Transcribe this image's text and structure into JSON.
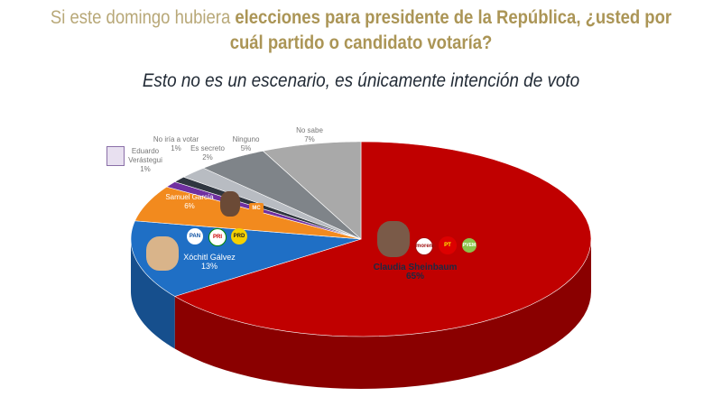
{
  "header": {
    "title_plain": "Si este domingo hubiera ",
    "title_bold": "elecciones para presidente de la República, ¿usted por cuál partido o candidato votaría?",
    "subtitle": "Esto no es un escenario, es únicamente intención de voto"
  },
  "chart_data": {
    "type": "pie",
    "title": "Si este domingo hubiera elecciones para presidente de la República, ¿usted por cuál partido o candidato votaría?",
    "subtitle": "Esto no es un escenario, es únicamente intención de voto",
    "slices": [
      {
        "label": "Claudia Sheinbaum",
        "value": 65,
        "value_label": "65%",
        "color": "#c00000"
      },
      {
        "label": "Xóchitl Gálvez",
        "value": 13,
        "value_label": "13%",
        "color": "#1f6fc5"
      },
      {
        "label": "Samuel García",
        "value": 6,
        "value_label": "6%",
        "color": "#f28a1e"
      },
      {
        "label": "Eduardo Verástegui",
        "value": 1,
        "value_label": "1%",
        "color": "#7030a0"
      },
      {
        "label": "No iría a votar",
        "value": 1,
        "value_label": "1%",
        "color": "#2f3640"
      },
      {
        "label": "Es secreto",
        "value": 2,
        "value_label": "2%",
        "color": "#b8bcc2"
      },
      {
        "label": "Ninguno",
        "value": 5,
        "value_label": "5%",
        "color": "#7f8489"
      },
      {
        "label": "No sabe",
        "value": 7,
        "value_label": "7%",
        "color": "#a9a9a9"
      }
    ],
    "parties": {
      "sheinbaum": [
        "morena",
        "PT",
        "PVEM"
      ],
      "galvez": [
        "PAN",
        "PRI",
        "PRD"
      ],
      "garcia": [
        "MC"
      ]
    }
  }
}
